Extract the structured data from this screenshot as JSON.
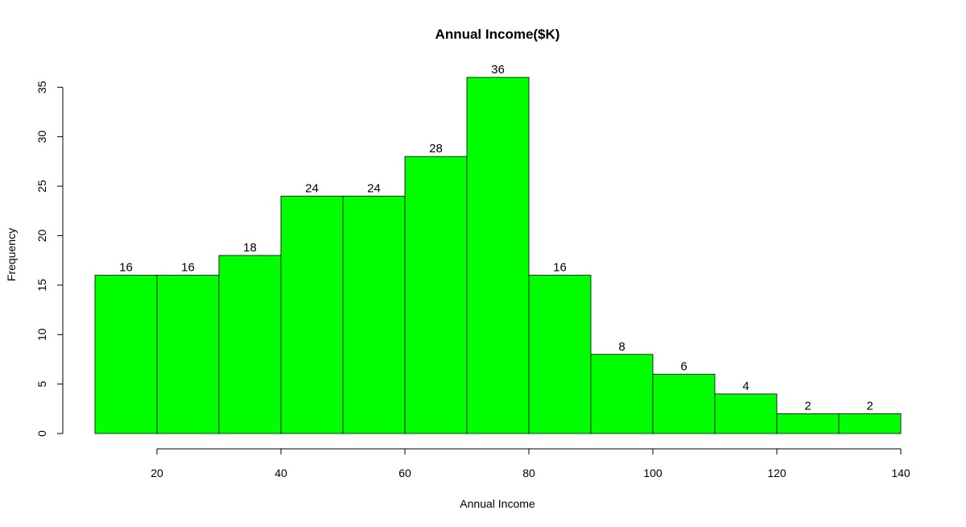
{
  "chart_data": {
    "type": "bar",
    "title": "Annual Income($K)",
    "xlabel": "Annual Income",
    "ylabel": "Frequency",
    "bin_edges": [
      10,
      20,
      30,
      40,
      50,
      60,
      70,
      80,
      90,
      100,
      110,
      120,
      130,
      140
    ],
    "values": [
      16,
      16,
      18,
      24,
      24,
      28,
      36,
      16,
      8,
      6,
      4,
      2,
      2
    ],
    "xticks": [
      20,
      40,
      60,
      80,
      100,
      120,
      140
    ],
    "yticks": [
      0,
      5,
      10,
      15,
      20,
      25,
      30,
      35
    ],
    "xlim": [
      10,
      140
    ],
    "ylim": [
      0,
      36
    ],
    "bar_color": "#00FF00",
    "grid": false,
    "legend": "none"
  }
}
